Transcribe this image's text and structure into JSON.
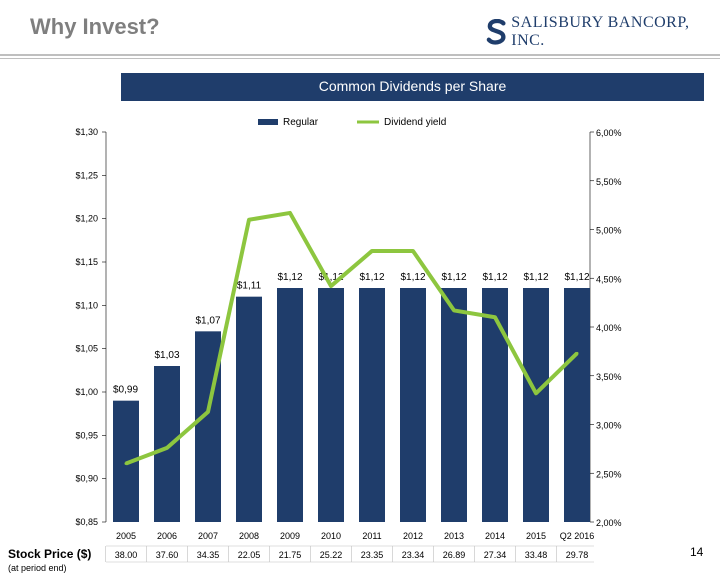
{
  "header": {
    "title": "Why Invest?",
    "logo_text": "SALISBURY BANCORP, INC.",
    "logo_mark": "S"
  },
  "page_number": "14",
  "stock_section": {
    "title": "Stock Price ($)",
    "subtitle": "(at period end)"
  },
  "colors": {
    "bar": "#1f3d6b",
    "line": "#8dc63f",
    "banner": "#1f3d6b",
    "title_gray": "#7f7f7f"
  },
  "chart_data": {
    "type": "bar",
    "title": "Common Dividends per Share",
    "legend_position": "top-center",
    "categories": [
      "2005",
      "2006",
      "2007",
      "2008",
      "2009",
      "2010",
      "2011",
      "2012",
      "2013",
      "2014",
      "2015",
      "Q2 2016"
    ],
    "series": [
      {
        "name": "Regular",
        "type": "bar",
        "axis": "left",
        "values": [
          0.99,
          1.03,
          1.07,
          1.11,
          1.12,
          1.12,
          1.12,
          1.12,
          1.12,
          1.12,
          1.12,
          1.12
        ],
        "labels": [
          "$0,99",
          "$1,03",
          "$1,07",
          "$1,11",
          "$1,12",
          "$1,12",
          "$1,12",
          "$1,12",
          "$1,12",
          "$1,12",
          "$1,12",
          "$1,12"
        ]
      },
      {
        "name": "Dividend yield",
        "type": "line",
        "axis": "right",
        "values": [
          2.6,
          2.76,
          3.13,
          5.1,
          5.17,
          4.42,
          4.78,
          4.78,
          4.17,
          4.1,
          3.32,
          3.73
        ]
      }
    ],
    "y_left": {
      "min": 0.85,
      "max": 1.3,
      "ticks": [
        "$0,85",
        "$0,90",
        "$0,95",
        "$1,00",
        "$1,05",
        "$1,10",
        "$1,15",
        "$1,20",
        "$1,25",
        "$1,30"
      ]
    },
    "y_right": {
      "min": 2.0,
      "max": 6.0,
      "ticks": [
        "2,00%",
        "2,50%",
        "3,00%",
        "3,50%",
        "4,00%",
        "4,50%",
        "5,00%",
        "5,50%",
        "6,00%"
      ]
    },
    "stock_prices": [
      "38.00",
      "37.60",
      "34.35",
      "22.05",
      "21.75",
      "25.22",
      "23.35",
      "23.34",
      "26.89",
      "27.34",
      "33.48",
      "29.78"
    ]
  }
}
